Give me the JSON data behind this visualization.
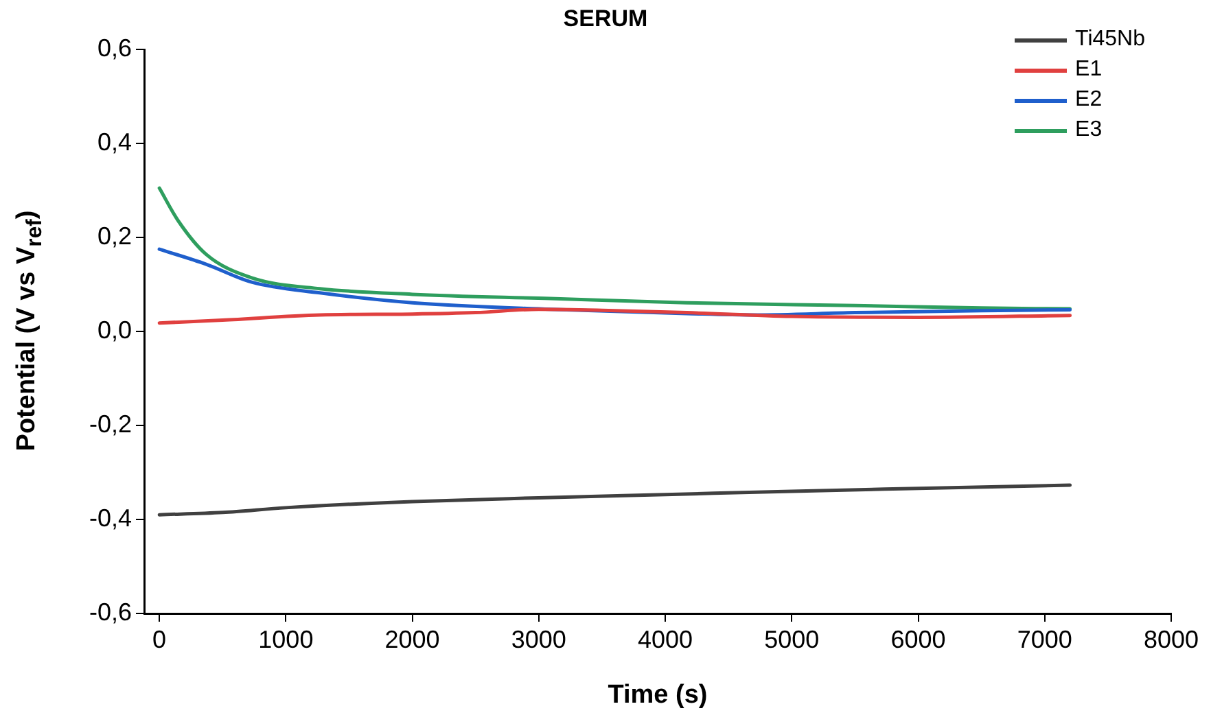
{
  "chart_data": {
    "type": "line",
    "title": "SERUM",
    "xlabel": "Time (s)",
    "ylabel": "Potential (V vs V$_{ref}$)",
    "xlim": [
      -120,
      8000
    ],
    "xticks": [
      0,
      1000,
      2000,
      3000,
      4000,
      5000,
      6000,
      7000,
      8000
    ],
    "ylim": [
      -0.6,
      0.6
    ],
    "yticks": [
      {
        "value": -0.6,
        "label": "-0,6"
      },
      {
        "value": -0.4,
        "label": "-0,4"
      },
      {
        "value": -0.2,
        "label": "-0,2"
      },
      {
        "value": 0,
        "label": "0,0"
      },
      {
        "value": 0.2,
        "label": "0,2"
      },
      {
        "value": 0.4,
        "label": "0,4"
      },
      {
        "value": 0.6,
        "label": "0,6"
      }
    ],
    "grid": false,
    "legend": "top right",
    "marker": "none",
    "line_style": "solid",
    "series": [
      {
        "name": "Ti45Nb",
        "color": "#404040",
        "x": [
          0,
          500,
          1000,
          2000,
          3000,
          4000,
          5000,
          6000,
          7200
        ],
        "values": [
          -0.39,
          -0.385,
          -0.375,
          -0.362,
          -0.354,
          -0.347,
          -0.34,
          -0.334,
          -0.327
        ]
      },
      {
        "name": "E1",
        "color": "#e0403f",
        "x": [
          0,
          500,
          1270,
          2000,
          2500,
          3000,
          3500,
          4170,
          5000,
          6000,
          7200
        ],
        "values": [
          0.018,
          0.024,
          0.035,
          0.037,
          0.04,
          0.047,
          0.045,
          0.04,
          0.032,
          0.03,
          0.034
        ]
      },
      {
        "name": "E2",
        "color": "#1f5fcc",
        "x": [
          0,
          370,
          730,
          1270,
          2000,
          3090,
          4170,
          4700,
          5500,
          6500,
          7200
        ],
        "values": [
          0.175,
          0.143,
          0.105,
          0.082,
          0.061,
          0.047,
          0.038,
          0.035,
          0.04,
          0.044,
          0.046
        ]
      },
      {
        "name": "E3",
        "color": "#2e9e5e",
        "x": [
          0,
          150,
          370,
          730,
          1270,
          2000,
          3090,
          4170,
          5500,
          6500,
          7200
        ],
        "values": [
          0.305,
          0.235,
          0.164,
          0.114,
          0.091,
          0.079,
          0.07,
          0.061,
          0.055,
          0.05,
          0.048
        ]
      }
    ]
  }
}
